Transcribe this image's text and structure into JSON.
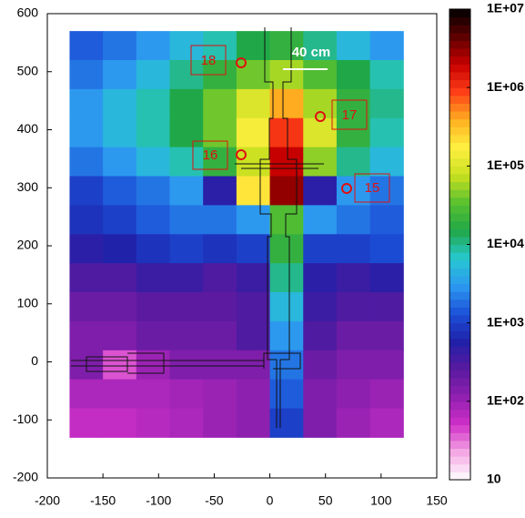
{
  "chart_data": {
    "type": "heatmap",
    "x": [
      -165,
      -135,
      -105,
      -75,
      -45,
      -15,
      15,
      45,
      75,
      105
    ],
    "y": [
      545,
      495,
      445,
      395,
      345,
      295,
      245,
      195,
      145,
      95,
      45,
      -5,
      -55,
      -105
    ],
    "z": [
      [
        1500,
        2000,
        3000,
        5000,
        8000,
        15000,
        20000,
        10000,
        5000,
        3000
      ],
      [
        2000,
        3000,
        5000,
        10000,
        20000,
        40000,
        60000,
        30000,
        15000,
        8000
      ],
      [
        3000,
        5000,
        8000,
        15000,
        40000,
        100000,
        400000,
        60000,
        20000,
        10000
      ],
      [
        3000,
        5000,
        8000,
        15000,
        40000,
        150000,
        1000000,
        100000,
        20000,
        8000
      ],
      [
        2000,
        3000,
        5000,
        8000,
        20000,
        80000,
        2000000,
        50000,
        10000,
        5000
      ],
      [
        1000,
        1500,
        2000,
        3000,
        500,
        200000,
        3000000,
        500,
        3000,
        2000
      ],
      [
        800,
        1000,
        1500,
        2000,
        2000,
        3000,
        30000,
        3000,
        2000,
        1500
      ],
      [
        500,
        600,
        800,
        1000,
        800,
        1000,
        20000,
        1000,
        1000,
        1200
      ],
      [
        300,
        300,
        400,
        400,
        300,
        400,
        10000,
        500,
        400,
        500
      ],
      [
        200,
        200,
        250,
        250,
        250,
        300,
        5000,
        400,
        300,
        300
      ],
      [
        150,
        150,
        200,
        200,
        200,
        300,
        3000,
        300,
        200,
        200
      ],
      [
        150,
        40,
        100,
        150,
        150,
        150,
        2000,
        200,
        150,
        150
      ],
      [
        80,
        80,
        80,
        90,
        100,
        120,
        1500,
        150,
        120,
        100
      ],
      [
        60,
        60,
        70,
        80,
        100,
        120,
        1000,
        150,
        100,
        80
      ]
    ],
    "xlim": [
      -200,
      150
    ],
    "xticks": [
      -200,
      -150,
      -100,
      -50,
      0,
      50,
      100,
      150
    ],
    "ylim": [
      -200,
      600
    ],
    "yticks": [
      -200,
      -100,
      0,
      100,
      200,
      300,
      400,
      500,
      600
    ],
    "clim": [
      10,
      10000000
    ],
    "color_scale": "log",
    "cticks": [
      10,
      {
        "value": 100,
        "label": "1E+02"
      },
      {
        "value": 1000,
        "label": "1E+03"
      },
      {
        "value": 10000,
        "label": "1E+04"
      },
      {
        "value": 100000,
        "label": "1E+05"
      },
      {
        "value": 1000000,
        "label": "1E+06"
      },
      {
        "value": 10000000,
        "label": "1E+07"
      }
    ],
    "colormap": [
      "#ffffff",
      "#f4a8e4",
      "#d030c8",
      "#9020b0",
      "#5a1aa0",
      "#2020a8",
      "#1c50d8",
      "#2c98f0",
      "#28c8d0",
      "#20a848",
      "#58c030",
      "#c8e020",
      "#fff040",
      "#ffb020",
      "#ff4018",
      "#c80000",
      "#600000",
      "#000000"
    ],
    "annotations": [
      "18",
      "17",
      "16",
      "15",
      "40 cm"
    ]
  }
}
